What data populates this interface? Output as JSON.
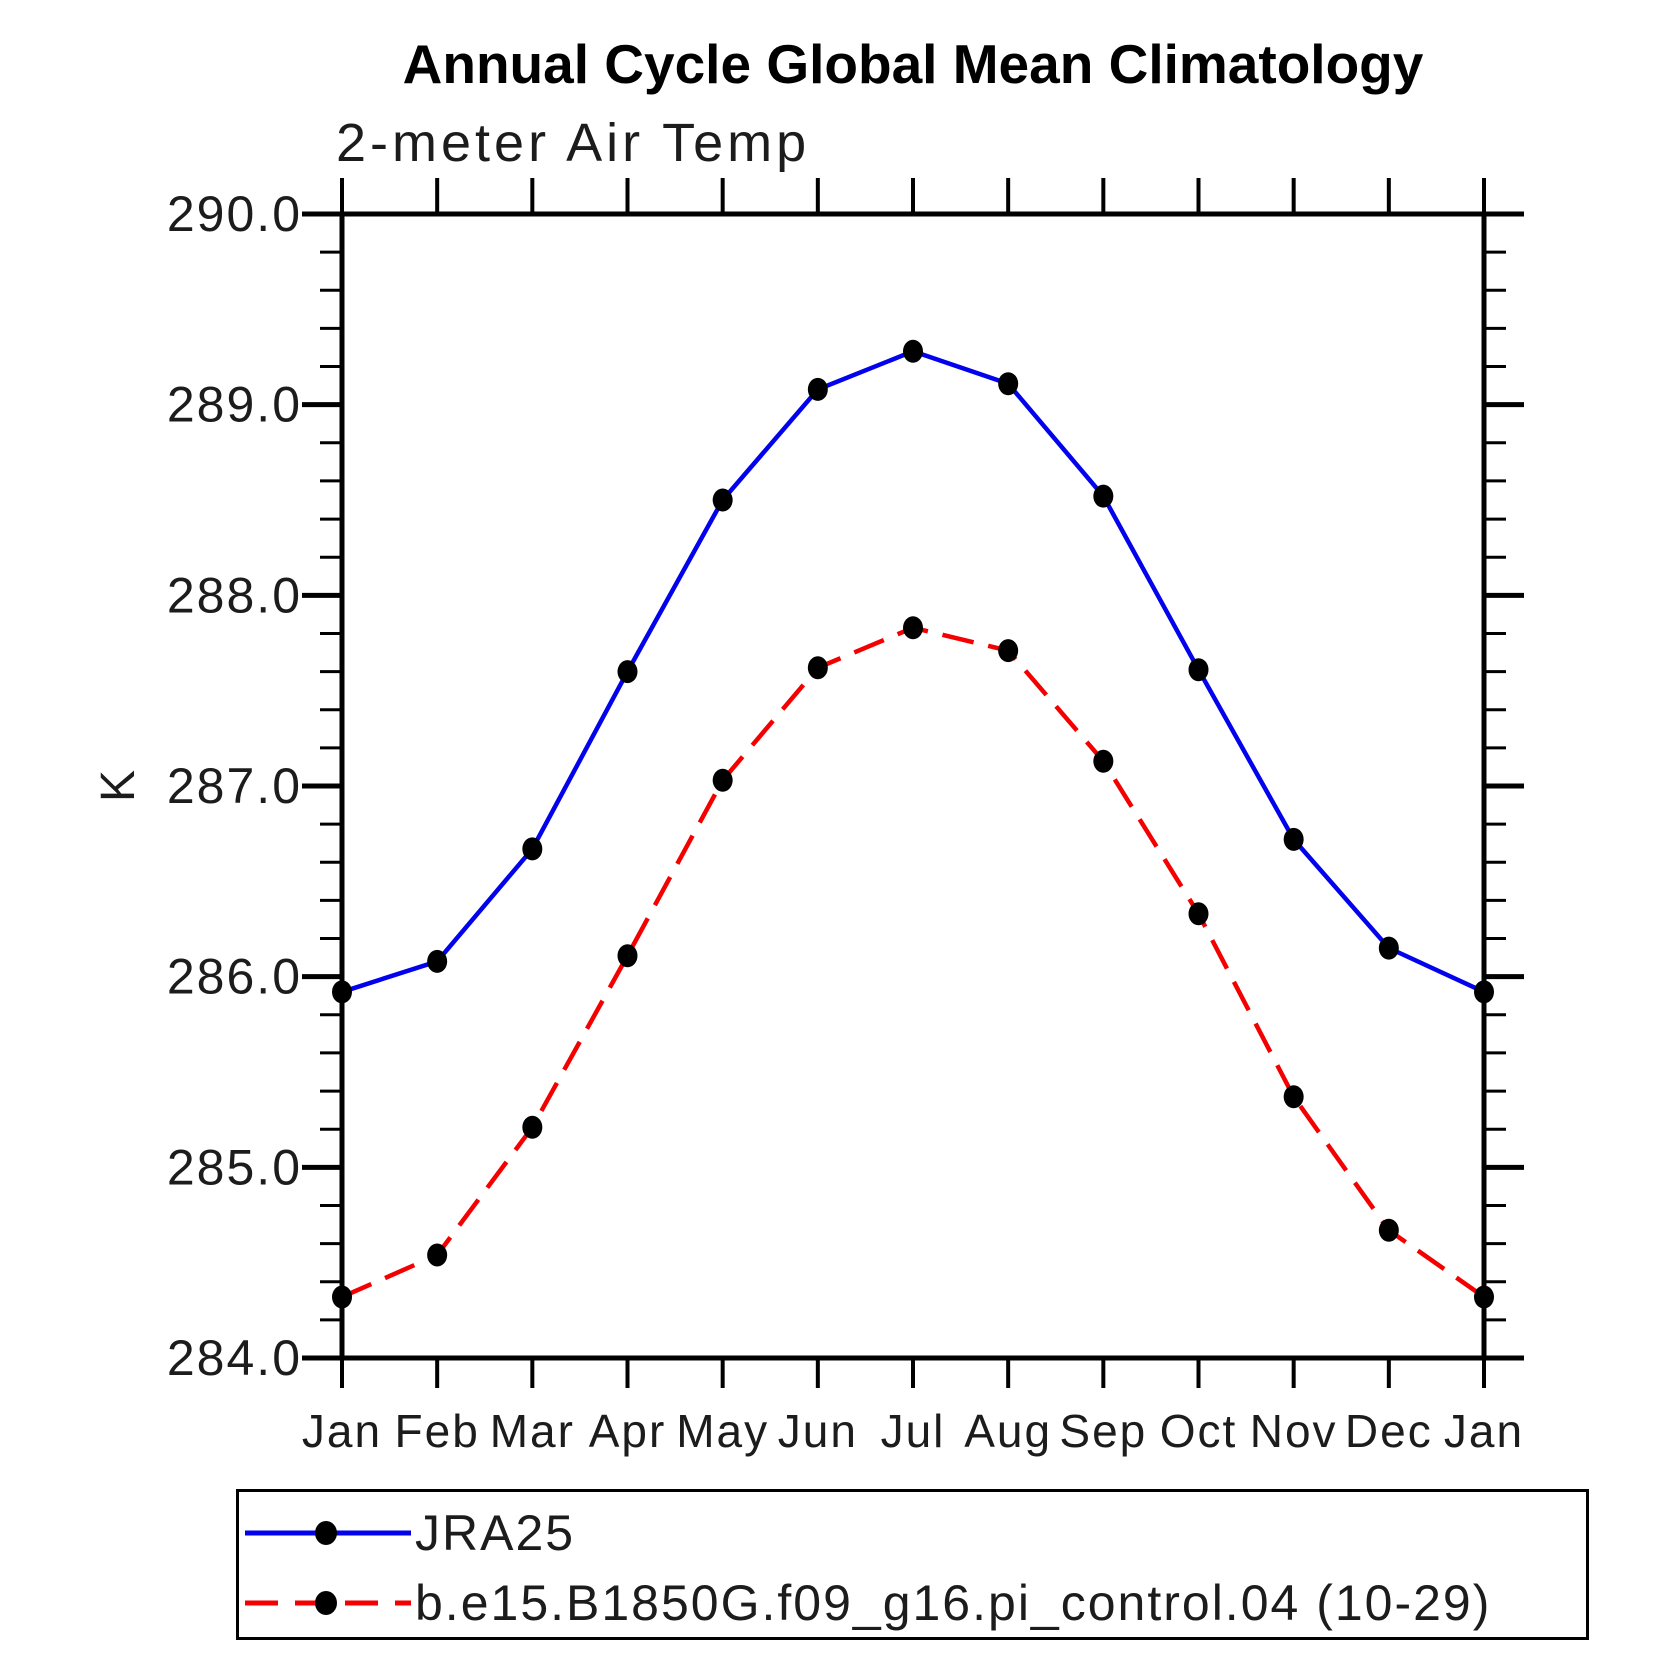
{
  "chart_data": {
    "type": "line",
    "title": "Annual Cycle Global Mean Climatology",
    "subtitle": "2-meter Air Temp",
    "ylabel": "K",
    "xlabel": "",
    "categories": [
      "Jan",
      "Feb",
      "Mar",
      "Apr",
      "May",
      "Jun",
      "Jul",
      "Aug",
      "Sep",
      "Oct",
      "Nov",
      "Dec",
      "Jan"
    ],
    "ylim": [
      284.0,
      290.0
    ],
    "ytick_labels": [
      "290.0",
      "289.0",
      "288.0",
      "287.0",
      "286.0",
      "285.0",
      "284.0"
    ],
    "ytick_step": 1.0,
    "yminor_step": 0.2,
    "grid": false,
    "legend_position": "bottom",
    "axis_color": "#000000",
    "marker_color": "#000000",
    "series": [
      {
        "name": "JRA25",
        "color": "#0202ec",
        "line_style": "solid",
        "marker": "filled-circle",
        "values": [
          285.92,
          286.08,
          286.67,
          287.6,
          288.5,
          289.08,
          289.28,
          289.11,
          288.52,
          287.61,
          286.72,
          286.15,
          285.92
        ]
      },
      {
        "name": "b.e15.B1850G.f09_g16.pi_control.04 (10-29)",
        "color": "#f40000",
        "line_style": "dashed",
        "marker": "filled-circle",
        "values": [
          284.32,
          284.54,
          285.21,
          286.11,
          287.03,
          287.62,
          287.83,
          287.71,
          287.13,
          286.33,
          285.37,
          284.67,
          284.32
        ]
      }
    ]
  }
}
